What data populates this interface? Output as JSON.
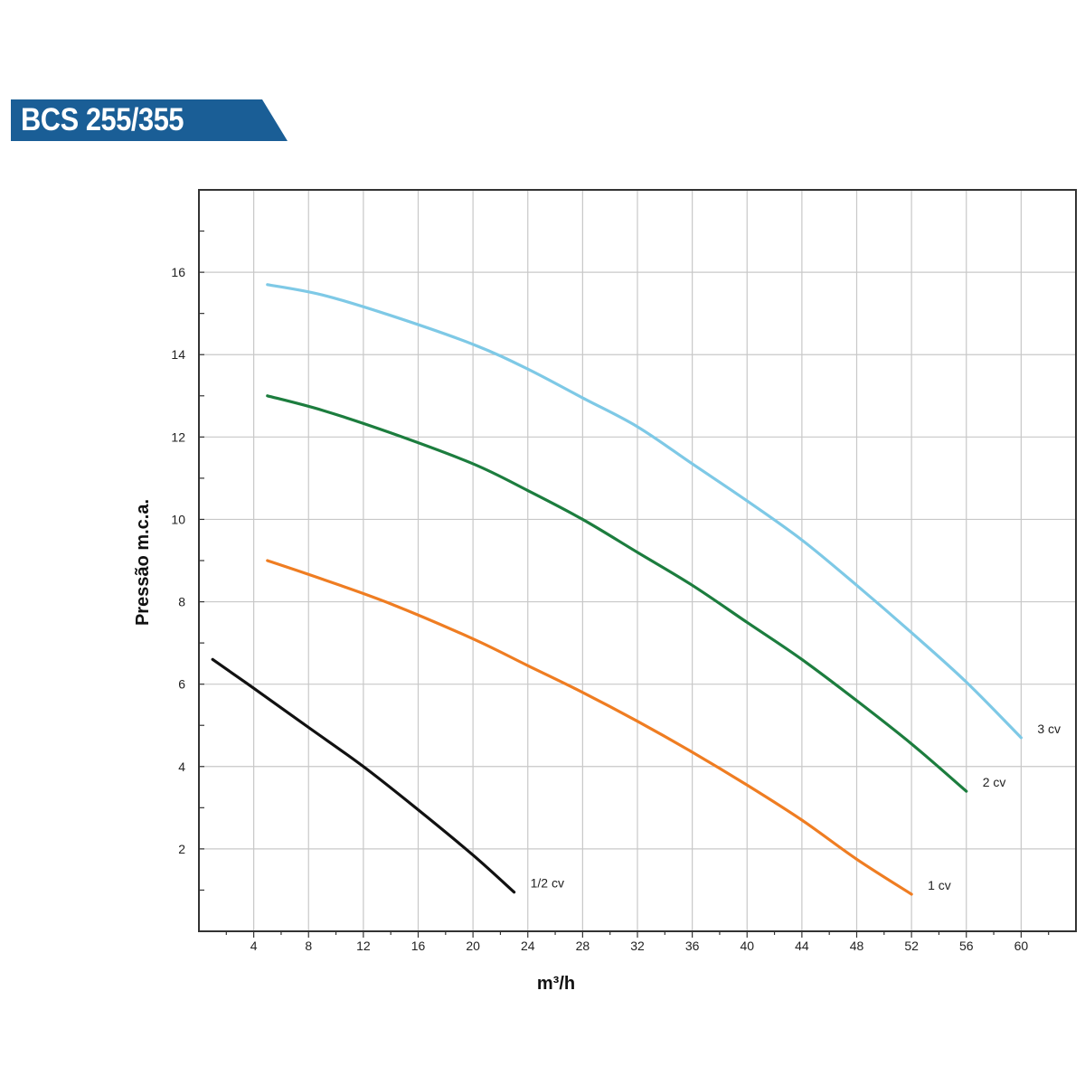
{
  "title": "BCS 255/355",
  "colors": {
    "banner": "#1a5e96",
    "grid": "#c8c8c8",
    "frame": "#333333"
  },
  "chart_data": {
    "type": "line",
    "xlabel": "m³/h",
    "ylabel": "Pressão m.c.a.",
    "xlim": [
      0,
      64
    ],
    "ylim": [
      0,
      18
    ],
    "x_ticks": [
      4,
      8,
      12,
      16,
      20,
      24,
      28,
      32,
      36,
      40,
      44,
      48,
      52,
      56,
      60
    ],
    "y_ticks": [
      2,
      4,
      6,
      8,
      10,
      12,
      14,
      16
    ],
    "grid": true,
    "series": [
      {
        "name": "1/2 cv",
        "color": "#111111",
        "points": [
          [
            1,
            6.6
          ],
          [
            4,
            5.9
          ],
          [
            8,
            4.95
          ],
          [
            12,
            4.0
          ],
          [
            16,
            2.95
          ],
          [
            20,
            1.85
          ],
          [
            23,
            0.95
          ]
        ]
      },
      {
        "name": "1 cv",
        "color": "#ef7d22",
        "points": [
          [
            5,
            9.0
          ],
          [
            9,
            8.55
          ],
          [
            14,
            7.95
          ],
          [
            20,
            7.1
          ],
          [
            24,
            6.45
          ],
          [
            28,
            5.8
          ],
          [
            32,
            5.1
          ],
          [
            36,
            4.35
          ],
          [
            40,
            3.55
          ],
          [
            44,
            2.7
          ],
          [
            48,
            1.75
          ],
          [
            52,
            0.9
          ]
        ]
      },
      {
        "name": "2 cv",
        "color": "#1c7d3e",
        "points": [
          [
            5,
            13.0
          ],
          [
            9,
            12.65
          ],
          [
            14,
            12.1
          ],
          [
            20,
            11.35
          ],
          [
            24,
            10.7
          ],
          [
            28,
            10.0
          ],
          [
            32,
            9.2
          ],
          [
            36,
            8.4
          ],
          [
            40,
            7.5
          ],
          [
            44,
            6.6
          ],
          [
            48,
            5.6
          ],
          [
            52,
            4.55
          ],
          [
            56,
            3.4
          ]
        ]
      },
      {
        "name": "3 cv",
        "color": "#7ec9e6",
        "points": [
          [
            5,
            15.7
          ],
          [
            9,
            15.45
          ],
          [
            14,
            14.95
          ],
          [
            20,
            14.25
          ],
          [
            24,
            13.65
          ],
          [
            28,
            12.95
          ],
          [
            32,
            12.25
          ],
          [
            36,
            11.35
          ],
          [
            40,
            10.45
          ],
          [
            44,
            9.5
          ],
          [
            48,
            8.4
          ],
          [
            52,
            7.25
          ],
          [
            56,
            6.05
          ],
          [
            60,
            4.7
          ]
        ]
      }
    ]
  }
}
